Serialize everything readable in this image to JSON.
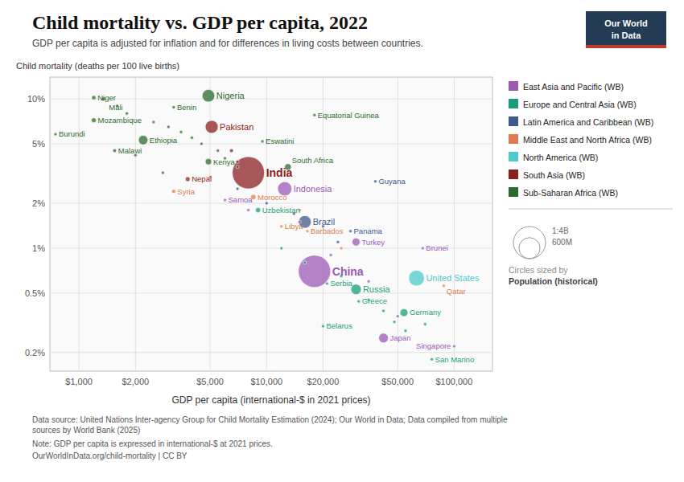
{
  "chart_data": {
    "type": "scatter",
    "title": "Child mortality vs. GDP per capita, 2022",
    "subtitle": "GDP per capita is adjusted for inflation and for differences in living costs between countries.",
    "y_label": "Child mortality (deaths per 100 live births)",
    "x_label": "GDP per capita (international-$ in 2021 prices)",
    "source": "Data source: United Nations Inter-agency Group for Child Mortality Estimation (2024); Our World in Data; Data compiled from multiple\nsources by World Bank (2025)",
    "note": "Note: GDP per capita is expressed in international-$ at 2021 prices.",
    "url": "OurWorldInData.org/child-mortality | CC BY",
    "logo": [
      "Our World",
      "in Data"
    ],
    "log": true,
    "grid": true,
    "legend": "right",
    "xlim": [
      700,
      160000
    ],
    "ylim": [
      0.15,
      14
    ],
    "xticks": [
      {
        "value": 1000,
        "label": "$1,000"
      },
      {
        "value": 2000,
        "label": "$2,000"
      },
      {
        "value": 5000,
        "label": "$5,000"
      },
      {
        "value": 10000,
        "label": "$10,000"
      },
      {
        "value": 20000,
        "label": "$20,000"
      },
      {
        "value": 50000,
        "label": "$50,000"
      },
      {
        "value": 100000,
        "label": "$100,000"
      }
    ],
    "yticks": [
      {
        "value": 0.2,
        "label": "0.2%"
      },
      {
        "value": 0.5,
        "label": "0.5%"
      },
      {
        "value": 1,
        "label": "1%"
      },
      {
        "value": 2,
        "label": "2%"
      },
      {
        "value": 5,
        "label": "5%"
      },
      {
        "value": 10,
        "label": "10%"
      }
    ],
    "size_legend": {
      "values": [
        1400000000,
        600000000
      ],
      "value_labels": [
        "1:4B",
        "600M"
      ],
      "title": "Circles sized by",
      "subtitle": "Population (historical)"
    },
    "series": [
      {
        "name": "East Asia and Pacific (WB)",
        "color": "#9b59b6",
        "labels": [
          "China",
          "Indonesia",
          "Samoa",
          "Turkey",
          "Japan",
          "Singapore",
          "Brunei",
          null,
          null,
          null,
          null,
          null
        ],
        "x": [
          18000,
          12500,
          6000,
          30000,
          42000,
          100000,
          68000,
          8000,
          15000,
          22000,
          35000,
          50000
        ],
        "values": [
          0.7,
          2.5,
          2.1,
          1.1,
          0.25,
          0.22,
          1.0,
          1.8,
          1.5,
          0.9,
          0.6,
          0.35
        ],
        "sizes": [
          1400000000,
          273000000,
          220000,
          85000000,
          125000000,
          5500000,
          450000,
          10000000,
          8000000,
          6000000,
          5000000,
          3000000
        ]
      },
      {
        "name": "Europe and Central Asia (WB)",
        "color": "#1a9e77",
        "labels": [
          "Uzbekistan",
          "Serbia",
          "Russia",
          "Greece",
          "Germany",
          "Belarus",
          null,
          null,
          null,
          null,
          null,
          null,
          null,
          "San Marino",
          null
        ],
        "x": [
          9000,
          21000,
          30000,
          31000,
          54000,
          20000,
          12000,
          16000,
          25000,
          35000,
          42000,
          48000,
          55000,
          76000,
          70000
        ],
        "values": [
          1.8,
          0.58,
          0.53,
          0.44,
          0.37,
          0.3,
          1.0,
          0.8,
          0.65,
          0.45,
          0.38,
          0.32,
          0.28,
          0.18,
          0.31
        ],
        "sizes": [
          35000000,
          7000000,
          144000000,
          11000000,
          84000000,
          9500000,
          5000000,
          8000000,
          10000000,
          7000000,
          9000000,
          5000000,
          6000000,
          33000,
          4000000
        ]
      },
      {
        "name": "Latin America and Caribbean (WB)",
        "color": "#3d5a8a",
        "labels": [
          "Brazil",
          "Panama",
          "Guyana",
          null,
          null,
          null,
          null,
          null
        ],
        "x": [
          16000,
          28000,
          38000,
          7000,
          10000,
          14000,
          20000,
          24000
        ],
        "values": [
          1.5,
          1.3,
          2.8,
          2.5,
          2.0,
          1.7,
          1.4,
          1.1
        ],
        "sizes": [
          215000000,
          4300000,
          800000,
          5000000,
          7000000,
          6000000,
          5000000,
          4000000
        ]
      },
      {
        "name": "Middle East and North Africa (WB)",
        "color": "#e07b4f",
        "labels": [
          "Syria",
          "Morocco",
          "Libya",
          "Barbados",
          "Qatar",
          null,
          null,
          null
        ],
        "x": [
          3200,
          8500,
          12000,
          16500,
          88000,
          5000,
          15000,
          25000
        ],
        "values": [
          2.4,
          2.2,
          1.4,
          1.3,
          0.56,
          3.0,
          1.8,
          1.0
        ],
        "sizes": [
          21000000,
          37000000,
          7000000,
          290000,
          2800000,
          10000000,
          8000000,
          6000000
        ]
      },
      {
        "name": "North America (WB)",
        "color": "#4ec9c9",
        "labels": [
          "United States"
        ],
        "x": [
          63000
        ],
        "values": [
          0.63
        ],
        "sizes": [
          335000000
        ]
      },
      {
        "name": "South Asia (WB)",
        "color": "#8b2020",
        "labels": [
          "Pakistan",
          "India",
          "Nepal",
          null,
          null
        ],
        "x": [
          5100,
          8000,
          3800,
          6500,
          7000
        ],
        "values": [
          6.5,
          3.2,
          2.9,
          4.5,
          3.8
        ],
        "sizes": [
          225000000,
          1400000000,
          30000000,
          20000000,
          15000000
        ]
      },
      {
        "name": "Sub-Saharan Africa (WB)",
        "color": "#2d6a2d",
        "labels": [
          "Niger",
          "Mali",
          "Nigeria",
          "Mozambique",
          "Benin",
          "Burundi",
          "Ethiopia",
          "Malawi",
          "Kenya",
          "South Africa",
          "Equatorial Guinea",
          "Eswatini",
          null,
          null,
          null,
          null,
          null,
          null,
          null,
          null,
          null,
          null,
          null,
          null
        ],
        "x": [
          1200,
          1350,
          4900,
          1200,
          3200,
          750,
          2200,
          1550,
          4900,
          13000,
          18000,
          9500,
          1600,
          1800,
          2500,
          3000,
          3500,
          4000,
          4500,
          5500,
          6000,
          7000,
          2000,
          2800
        ],
        "values": [
          10.2,
          10.0,
          10.5,
          7.2,
          8.8,
          5.8,
          5.3,
          4.5,
          3.8,
          3.5,
          7.8,
          5.2,
          9.0,
          8.0,
          7.0,
          6.5,
          6.0,
          5.5,
          5.0,
          4.5,
          4.0,
          3.5,
          4.2,
          3.2
        ],
        "sizes": [
          25000000,
          22000000,
          215000000,
          32000000,
          12000000,
          12000000,
          120000000,
          19000000,
          54000000,
          60000000,
          1500000,
          1200000,
          3000000,
          5000000,
          8000000,
          4000000,
          6000000,
          7000000,
          5000000,
          4000000,
          3000000,
          5000000,
          3500000,
          4500000
        ]
      }
    ]
  }
}
